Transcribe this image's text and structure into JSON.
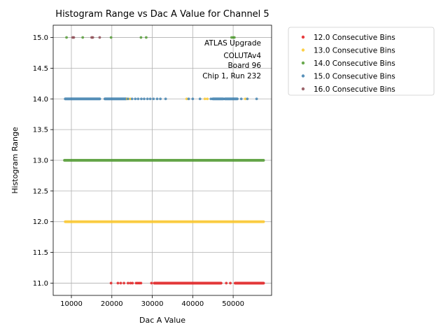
{
  "chart_data": {
    "type": "scatter",
    "title": "Histogram Range vs Dac A Value for Channel 5",
    "xlabel": "Dac A Value",
    "ylabel": "Histogram Range",
    "xlim": [
      5500,
      59500
    ],
    "ylim": [
      10.8,
      15.2
    ],
    "xticks": [
      10000,
      20000,
      30000,
      40000,
      50000
    ],
    "xtick_labels": [
      "10000",
      "20000",
      "30000",
      "40000",
      "50000"
    ],
    "yticks": [
      11.0,
      11.5,
      12.0,
      12.5,
      13.0,
      13.5,
      14.0,
      14.5,
      15.0
    ],
    "ytick_labels": [
      "11.0",
      "11.5",
      "12.0",
      "12.5",
      "13.0",
      "13.5",
      "14.0",
      "14.5",
      "15.0"
    ],
    "grid": true,
    "legend_position": "outside-upper-right",
    "annotation": [
      "ATLAS Upgrade",
      "COLUTAv4",
      "Board 96",
      "Chip 1, Run 232"
    ],
    "series": [
      {
        "name": "12.0 Consecutive Bins",
        "color": "#e31a1c",
        "segments": [
          [
            30500,
            47000
          ],
          [
            50500,
            57500
          ]
        ],
        "points": [
          {
            "x": 19800,
            "y": 11
          },
          {
            "x": 21500,
            "y": 11
          },
          {
            "x": 22200,
            "y": 11
          },
          {
            "x": 23000,
            "y": 11
          },
          {
            "x": 24000,
            "y": 11
          },
          {
            "x": 24600,
            "y": 11
          },
          {
            "x": 25100,
            "y": 11
          },
          {
            "x": 26000,
            "y": 11
          },
          {
            "x": 26400,
            "y": 11
          },
          {
            "x": 26800,
            "y": 11
          },
          {
            "x": 27200,
            "y": 11
          },
          {
            "x": 29800,
            "y": 11
          },
          {
            "x": 48300,
            "y": 11
          },
          {
            "x": 49300,
            "y": 11
          }
        ]
      },
      {
        "name": "13.0 Consecutive Bins",
        "color": "#fdc827",
        "segments": [
          [
            8500,
            57500
          ]
        ],
        "points": [
          {
            "x": 23800,
            "y": 14
          },
          {
            "x": 24500,
            "y": 14
          },
          {
            "x": 38500,
            "y": 14
          },
          {
            "x": 43000,
            "y": 14
          },
          {
            "x": 43600,
            "y": 14
          },
          {
            "x": 53000,
            "y": 14
          }
        ]
      },
      {
        "name": "14.0 Consecutive Bins",
        "color": "#4f9a2f",
        "segments": [
          [
            8300,
            57500
          ]
        ],
        "points": [
          {
            "x": 50000,
            "y": 15
          },
          {
            "x": 49600,
            "y": 15
          },
          {
            "x": 50300,
            "y": 15
          },
          {
            "x": 12800,
            "y": 15
          },
          {
            "x": 19800,
            "y": 15
          },
          {
            "x": 27200,
            "y": 15
          },
          {
            "x": 28500,
            "y": 15
          },
          {
            "x": 8800,
            "y": 15
          }
        ]
      },
      {
        "name": "15.0 Consecutive Bins",
        "color": "#3b7eae",
        "segments": [
          [
            8500,
            17000
          ],
          [
            18300,
            23500
          ],
          [
            45000,
            47500
          ],
          [
            48000,
            51000
          ]
        ],
        "points": [
          {
            "x": 24000,
            "y": 14
          },
          {
            "x": 25000,
            "y": 14
          },
          {
            "x": 25800,
            "y": 14
          },
          {
            "x": 26500,
            "y": 14
          },
          {
            "x": 27300,
            "y": 14
          },
          {
            "x": 28000,
            "y": 14
          },
          {
            "x": 28800,
            "y": 14
          },
          {
            "x": 29500,
            "y": 14
          },
          {
            "x": 30300,
            "y": 14
          },
          {
            "x": 31200,
            "y": 14
          },
          {
            "x": 32000,
            "y": 14
          },
          {
            "x": 33300,
            "y": 14
          },
          {
            "x": 39000,
            "y": 14
          },
          {
            "x": 40000,
            "y": 14
          },
          {
            "x": 41800,
            "y": 14
          },
          {
            "x": 44500,
            "y": 14
          },
          {
            "x": 52000,
            "y": 14
          },
          {
            "x": 53500,
            "y": 14
          },
          {
            "x": 55800,
            "y": 14
          }
        ]
      },
      {
        "name": "16.0 Consecutive Bins",
        "color": "#8c4a52",
        "segments": [],
        "points": [
          {
            "x": 10300,
            "y": 15
          },
          {
            "x": 10600,
            "y": 15
          },
          {
            "x": 15000,
            "y": 15
          },
          {
            "x": 15300,
            "y": 15
          },
          {
            "x": 17000,
            "y": 15
          }
        ]
      }
    ]
  }
}
